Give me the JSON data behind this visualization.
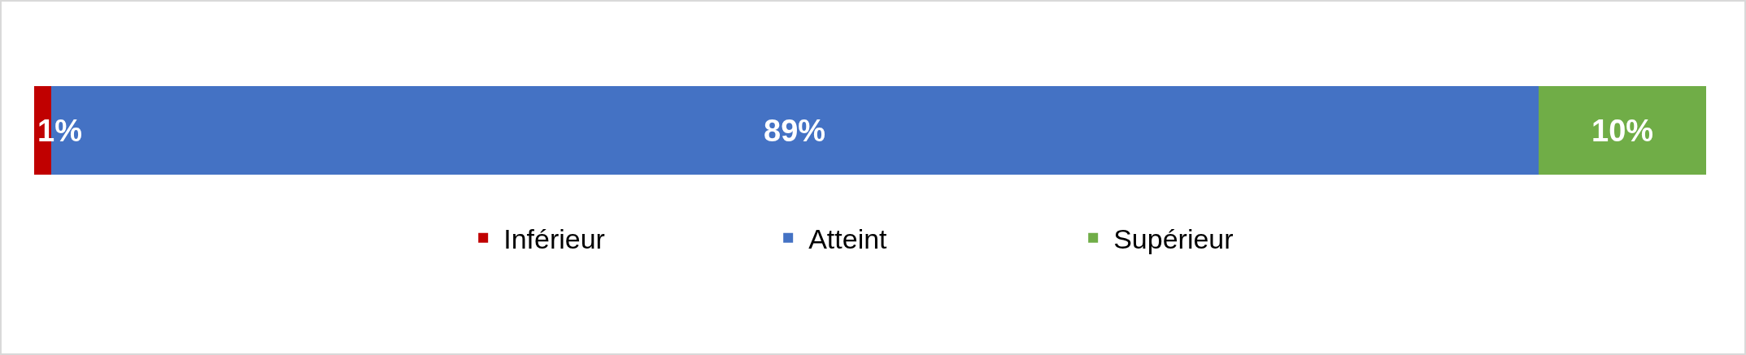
{
  "chart_data": {
    "type": "bar",
    "orientation": "horizontal",
    "stacked": true,
    "categories": [
      null
    ],
    "legend": "bottom",
    "series": [
      {
        "name": "Inférieur",
        "color": "#c00000",
        "values": [
          1
        ],
        "value_labels": [
          "1%"
        ]
      },
      {
        "name": "Atteint",
        "color": "#4472c4",
        "values": [
          89
        ],
        "value_labels": [
          "89%"
        ]
      },
      {
        "name": "Supérieur",
        "color": "#70ad47",
        "values": [
          10
        ],
        "value_labels": [
          "10%"
        ]
      }
    ]
  }
}
